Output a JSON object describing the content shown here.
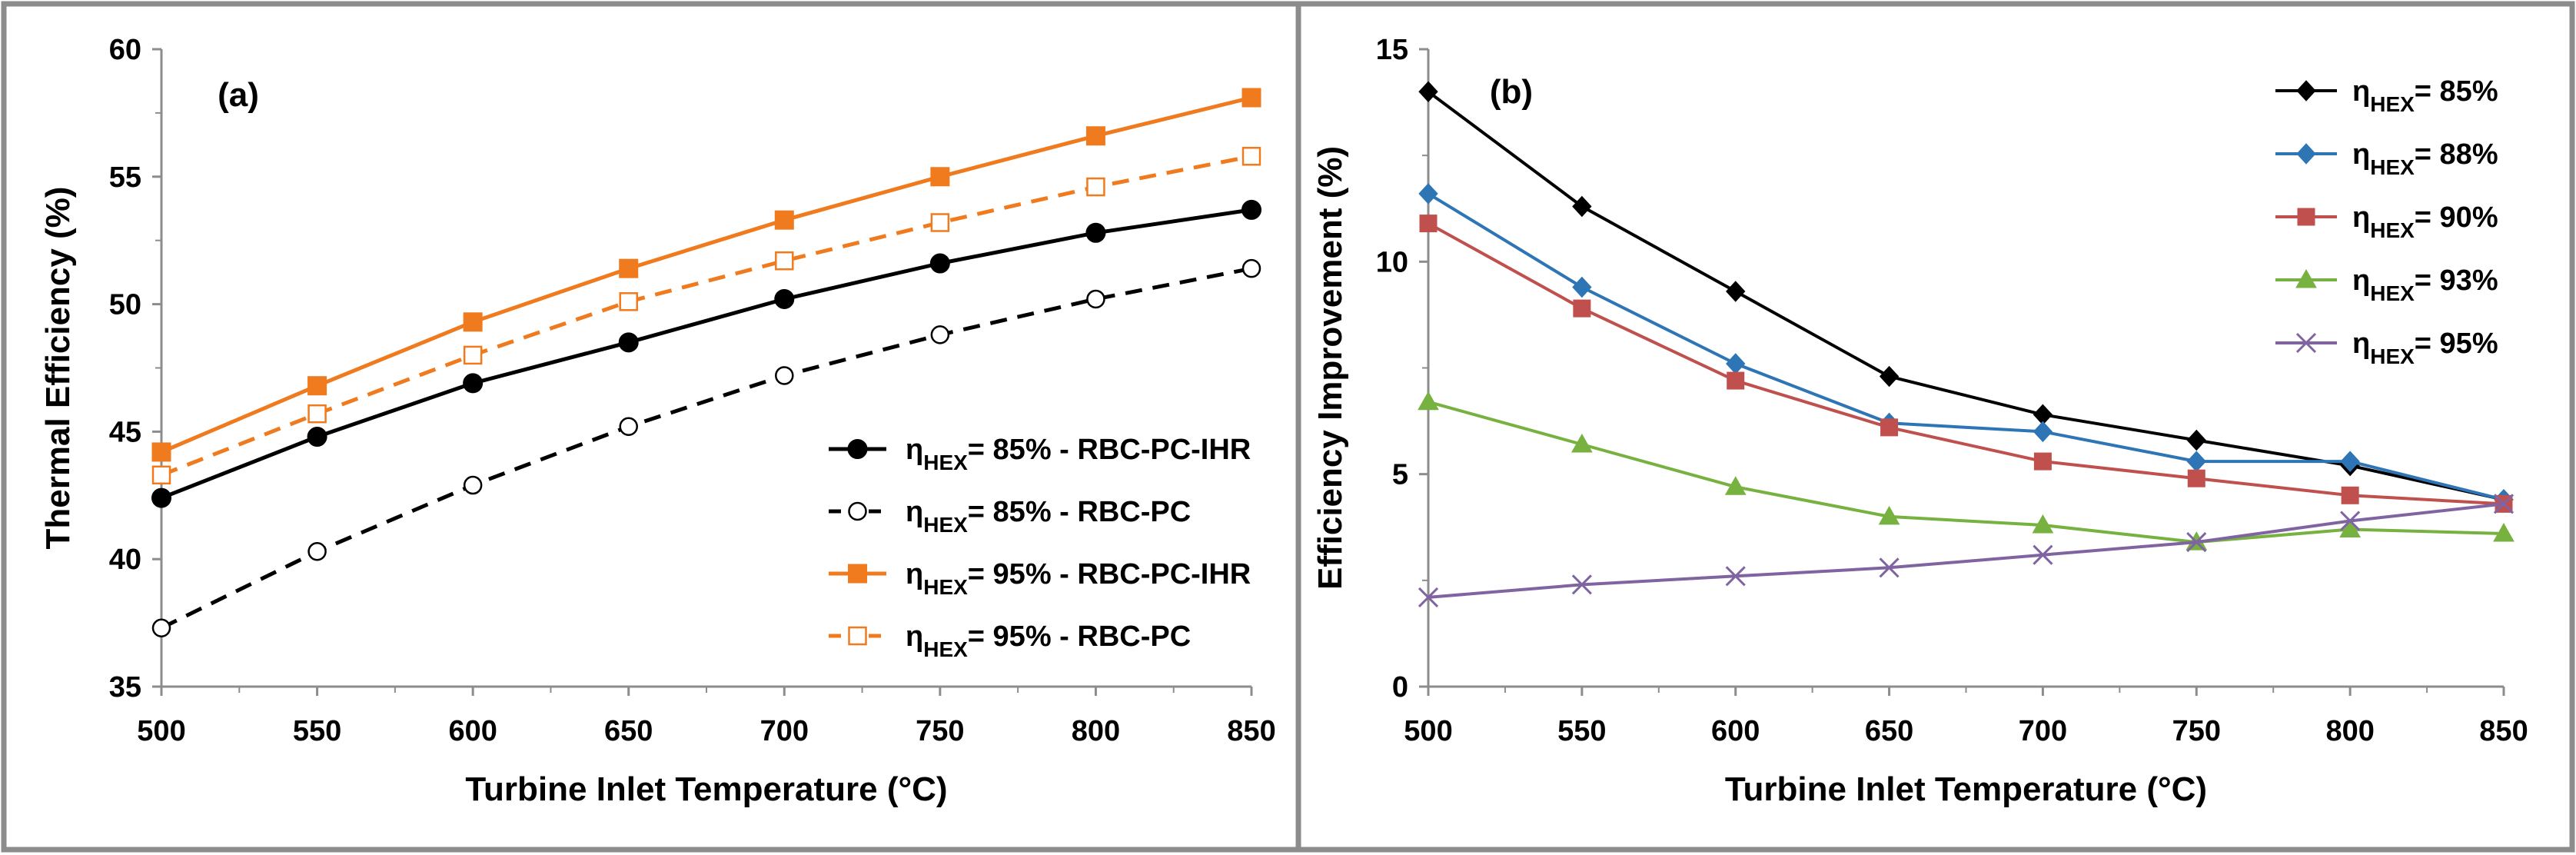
{
  "chart_data": [
    {
      "type": "line",
      "panel_label": "(a)",
      "xlabel": "Turbine Inlet Temperature (°C)",
      "ylabel": "Thermal Efficiency (%)",
      "xlim": [
        500,
        850
      ],
      "ylim": [
        35,
        60
      ],
      "xticks": [
        500,
        550,
        600,
        650,
        700,
        750,
        800,
        850
      ],
      "yticks": [
        35,
        40,
        45,
        50,
        55,
        60
      ],
      "grid": false,
      "legend_position": "bottom-right",
      "x": [
        500,
        550,
        600,
        650,
        700,
        750,
        800,
        850
      ],
      "series": [
        {
          "name": "η",
          "sub": "HEX",
          "suffix": "= 85% - RBC-PC-IHR",
          "color": "#000000",
          "dash": "solid",
          "marker": "filled-circle",
          "values": [
            42.4,
            44.8,
            46.9,
            48.5,
            50.2,
            51.6,
            52.8,
            53.7
          ]
        },
        {
          "name": "η",
          "sub": "HEX",
          "suffix": "= 85% - RBC-PC",
          "color": "#000000",
          "dash": "dashed",
          "marker": "open-circle",
          "values": [
            37.3,
            40.3,
            42.9,
            45.2,
            47.2,
            48.8,
            50.2,
            51.4
          ]
        },
        {
          "name": "η",
          "sub": "HEX",
          "suffix": "= 95% - RBC-PC-IHR",
          "color": "#f07b1e",
          "dash": "solid",
          "marker": "filled-square",
          "values": [
            44.2,
            46.8,
            49.3,
            51.4,
            53.3,
            55.0,
            56.6,
            58.1
          ]
        },
        {
          "name": "η",
          "sub": "HEX",
          "suffix": "= 95% - RBC-PC",
          "color": "#f07b1e",
          "dash": "dashed",
          "marker": "open-square",
          "values": [
            43.3,
            45.7,
            48.0,
            50.1,
            51.7,
            53.2,
            54.6,
            55.8
          ]
        }
      ]
    },
    {
      "type": "line",
      "panel_label": "(b)",
      "xlabel": "Turbine Inlet Temperature (°C)",
      "ylabel": "Efficiency Improvement (%)",
      "xlim": [
        500,
        850
      ],
      "ylim": [
        0,
        15
      ],
      "xticks": [
        500,
        550,
        600,
        650,
        700,
        750,
        800,
        850
      ],
      "yticks": [
        0,
        5,
        10,
        15
      ],
      "grid": false,
      "legend_position": "top-right",
      "x": [
        500,
        550,
        600,
        650,
        700,
        750,
        800,
        850
      ],
      "series": [
        {
          "name": "η",
          "sub": "HEX",
          "suffix": "= 85%",
          "color": "#000000",
          "marker": "diamond",
          "values": [
            14.0,
            11.3,
            9.3,
            7.3,
            6.4,
            5.8,
            5.2,
            4.4
          ]
        },
        {
          "name": "η",
          "sub": "HEX",
          "suffix": "= 88%",
          "color": "#2e75b6",
          "marker": "diamond",
          "values": [
            11.6,
            9.4,
            7.6,
            6.2,
            6.0,
            5.3,
            5.3,
            4.4
          ]
        },
        {
          "name": "η",
          "sub": "HEX",
          "suffix": "= 90%",
          "color": "#c0504d",
          "marker": "square",
          "values": [
            10.9,
            8.9,
            7.2,
            6.1,
            5.3,
            4.9,
            4.5,
            4.3
          ]
        },
        {
          "name": "η",
          "sub": "HEX",
          "suffix": "= 93%",
          "color": "#77b140",
          "marker": "triangle",
          "values": [
            6.7,
            5.7,
            4.7,
            4.0,
            3.8,
            3.4,
            3.7,
            3.6
          ]
        },
        {
          "name": "η",
          "sub": "HEX",
          "suffix": "= 95%",
          "color": "#8064a2",
          "marker": "x",
          "values": [
            2.1,
            2.4,
            2.6,
            2.8,
            3.1,
            3.4,
            3.9,
            4.3
          ]
        }
      ]
    }
  ]
}
